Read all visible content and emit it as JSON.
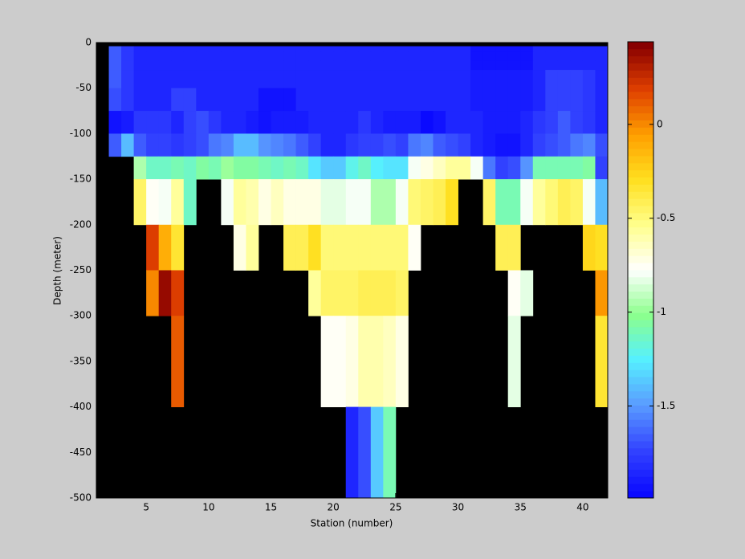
{
  "chart_data": {
    "type": "heatmap",
    "xlabel": "Station (number)",
    "ylabel": "Depth (meter)",
    "x": [
      2,
      3,
      4,
      5,
      6,
      7,
      8,
      9,
      10,
      11,
      12,
      13,
      14,
      15,
      16,
      17,
      18,
      19,
      20,
      21,
      22,
      23,
      24,
      25,
      26,
      27,
      28,
      29,
      30,
      31,
      32,
      33,
      34,
      35,
      36,
      37,
      38,
      39,
      40,
      41,
      42
    ],
    "y": [
      -4,
      -10,
      -20,
      -30,
      -50,
      -75,
      -100,
      -125,
      -150,
      -200,
      -250,
      -300,
      -400,
      -500
    ],
    "values": [
      [
        -1.65,
        -1.8,
        -1.85,
        -1.85,
        -1.85,
        -1.85,
        -1.85,
        -1.85,
        -1.85,
        -1.85,
        -1.85,
        -1.85,
        -1.85,
        -1.85,
        -1.85,
        -1.85,
        -1.85,
        -1.85,
        -1.85,
        -1.85,
        -1.85,
        -1.85,
        -1.85,
        -1.85,
        -1.85,
        -1.85,
        -1.85,
        -1.85,
        -1.85,
        -1.95,
        -1.95,
        -1.95,
        -1.95,
        -1.95,
        -1.85,
        -1.85,
        -1.85,
        -1.85,
        -1.85,
        -1.85
      ],
      [
        -1.65,
        -1.8,
        -1.85,
        -1.85,
        -1.85,
        -1.85,
        -1.85,
        -1.85,
        -1.85,
        -1.85,
        -1.85,
        -1.85,
        -1.85,
        -1.85,
        -1.85,
        -1.85,
        -1.85,
        -1.85,
        -1.85,
        -1.85,
        -1.85,
        -1.85,
        -1.85,
        -1.85,
        -1.85,
        -1.85,
        -1.85,
        -1.85,
        -1.85,
        -1.95,
        -1.95,
        -1.95,
        -1.95,
        -1.95,
        -1.85,
        -1.85,
        -1.85,
        -1.85,
        -1.85,
        -1.85
      ],
      [
        -1.65,
        -1.8,
        -1.85,
        -1.85,
        -1.85,
        -1.85,
        -1.85,
        -1.85,
        -1.85,
        -1.85,
        -1.85,
        -1.85,
        -1.85,
        -1.85,
        -1.85,
        -1.85,
        -1.85,
        -1.85,
        -1.85,
        -1.85,
        -1.85,
        -1.85,
        -1.85,
        -1.85,
        -1.85,
        -1.85,
        -1.85,
        -1.85,
        -1.85,
        -1.95,
        -1.95,
        -1.95,
        -1.95,
        -1.95,
        -1.85,
        -1.85,
        -1.85,
        -1.85,
        -1.85,
        -1.85
      ],
      [
        -1.65,
        -1.8,
        -1.85,
        -1.85,
        -1.85,
        -1.85,
        -1.85,
        -1.85,
        -1.85,
        -1.85,
        -1.85,
        -1.85,
        -1.85,
        -1.85,
        -1.85,
        -1.85,
        -1.85,
        -1.85,
        -1.85,
        -1.85,
        -1.85,
        -1.85,
        -1.85,
        -1.85,
        -1.85,
        -1.85,
        -1.85,
        -1.85,
        -1.85,
        -1.9,
        -1.9,
        -1.9,
        -1.9,
        -1.9,
        -1.85,
        -1.75,
        -1.75,
        -1.75,
        -1.8,
        -1.85
      ],
      [
        -1.7,
        -1.8,
        -1.85,
        -1.85,
        -1.85,
        -1.75,
        -1.75,
        -1.85,
        -1.85,
        -1.85,
        -1.85,
        -1.85,
        -1.95,
        -1.95,
        -1.95,
        -1.85,
        -1.85,
        -1.85,
        -1.85,
        -1.85,
        -1.85,
        -1.85,
        -1.85,
        -1.85,
        -1.85,
        -1.85,
        -1.85,
        -1.85,
        -1.85,
        -1.9,
        -1.9,
        -1.9,
        -1.9,
        -1.9,
        -1.85,
        -1.75,
        -1.75,
        -1.75,
        -1.8,
        -1.85
      ],
      [
        -1.95,
        -1.9,
        -1.8,
        -1.8,
        -1.8,
        -1.85,
        -1.75,
        -1.7,
        -1.8,
        -1.85,
        -1.85,
        -1.9,
        -1.95,
        -1.9,
        -1.9,
        -1.9,
        -1.85,
        -1.85,
        -1.85,
        -1.85,
        -1.8,
        -1.85,
        -1.9,
        -1.9,
        -1.9,
        -1.97,
        -1.95,
        -1.85,
        -1.85,
        -1.85,
        -1.9,
        -1.9,
        -1.9,
        -1.85,
        -1.8,
        -1.75,
        -1.65,
        -1.75,
        -1.8,
        -1.85
      ],
      [
        -1.65,
        -1.4,
        -1.65,
        -1.75,
        -1.75,
        -1.8,
        -1.75,
        -1.7,
        -1.6,
        -1.55,
        -1.4,
        -1.4,
        -1.5,
        -1.55,
        -1.6,
        -1.65,
        -1.75,
        -1.85,
        -1.85,
        -1.8,
        -1.75,
        -1.75,
        -1.7,
        -1.75,
        -1.6,
        -1.55,
        -1.65,
        -1.7,
        -1.75,
        -1.85,
        -1.9,
        -1.95,
        -1.95,
        -1.85,
        -1.75,
        -1.7,
        -1.65,
        -1.6,
        -1.55,
        -1.7
      ],
      [
        null,
        null,
        -0.95,
        -1.15,
        -1.15,
        -1.1,
        -1.15,
        -1.05,
        -1.1,
        -1.0,
        -1.05,
        -1.05,
        -1.1,
        -1.15,
        -1.1,
        -1.15,
        -1.3,
        -1.35,
        -1.35,
        -1.2,
        -1.15,
        -1.25,
        -1.3,
        -1.3,
        -0.8,
        -0.7,
        -0.65,
        -0.55,
        -0.55,
        -0.78,
        -1.6,
        -1.75,
        -1.7,
        -1.5,
        -1.1,
        -1.1,
        -1.1,
        -1.1,
        -1.05,
        -1.75
      ],
      [
        null,
        null,
        -0.45,
        -0.75,
        -0.8,
        -0.55,
        -1.15,
        null,
        null,
        -0.78,
        -0.55,
        -0.6,
        -0.7,
        -0.65,
        -0.7,
        -0.7,
        -0.72,
        -0.85,
        -0.85,
        -0.8,
        -0.78,
        -0.95,
        -0.95,
        -0.8,
        -0.5,
        -0.45,
        -0.4,
        -0.3,
        null,
        null,
        -0.45,
        -1.1,
        -1.1,
        -0.78,
        -0.55,
        -0.5,
        -0.4,
        -0.45,
        -0.78,
        -1.4
      ],
      [
        null,
        null,
        null,
        0.2,
        -0.1,
        -0.35,
        null,
        null,
        null,
        null,
        -0.7,
        -0.55,
        null,
        null,
        -0.4,
        -0.4,
        -0.3,
        -0.5,
        -0.5,
        -0.5,
        -0.5,
        -0.5,
        -0.5,
        -0.5,
        -0.75,
        null,
        null,
        null,
        null,
        null,
        null,
        -0.4,
        -0.4,
        null,
        null,
        null,
        null,
        null,
        -0.25,
        -0.3
      ],
      [
        null,
        null,
        null,
        0.0,
        0.4,
        0.2,
        null,
        null,
        null,
        null,
        null,
        null,
        null,
        null,
        null,
        null,
        -0.55,
        -0.45,
        -0.45,
        -0.45,
        -0.4,
        -0.4,
        -0.4,
        -0.45,
        null,
        null,
        null,
        null,
        null,
        null,
        null,
        null,
        -0.75,
        -0.85,
        null,
        null,
        null,
        null,
        null,
        -0.05
      ],
      [
        null,
        null,
        null,
        null,
        null,
        0.1,
        null,
        null,
        null,
        null,
        null,
        null,
        null,
        null,
        null,
        null,
        null,
        -0.75,
        -0.75,
        -0.7,
        -0.6,
        -0.6,
        -0.65,
        -0.7,
        null,
        null,
        null,
        null,
        null,
        null,
        null,
        null,
        -0.85,
        null,
        null,
        null,
        null,
        null,
        null,
        -0.35
      ],
      [
        null,
        null,
        null,
        null,
        null,
        null,
        null,
        null,
        null,
        null,
        null,
        null,
        null,
        null,
        null,
        null,
        null,
        null,
        null,
        -1.85,
        -1.7,
        -1.35,
        -1.1,
        null,
        null,
        null,
        null,
        null,
        null,
        null,
        null,
        null,
        null,
        null,
        null,
        null,
        null,
        null,
        null,
        null
      ]
    ],
    "xlim": [
      1,
      42
    ],
    "ylim": [
      -500,
      0
    ],
    "xticks": [
      5,
      10,
      15,
      20,
      25,
      30,
      35,
      40
    ],
    "yticks": [
      0,
      -50,
      -100,
      -150,
      -200,
      -250,
      -300,
      -350,
      -400,
      -450,
      -500
    ],
    "clim": [
      -1.99,
      0.44
    ],
    "cticks": [
      0,
      -0.5,
      -1,
      -1.5
    ],
    "colormap": [
      "#0a0aff",
      "#3344ff",
      "#5a9cff",
      "#55f0ff",
      "#8cff8c",
      "#ffffff",
      "#ffff8c",
      "#ffe020",
      "#ffa000",
      "#e04000",
      "#880000"
    ],
    "colormap_levels": 64,
    "missing_color": "#000000"
  }
}
